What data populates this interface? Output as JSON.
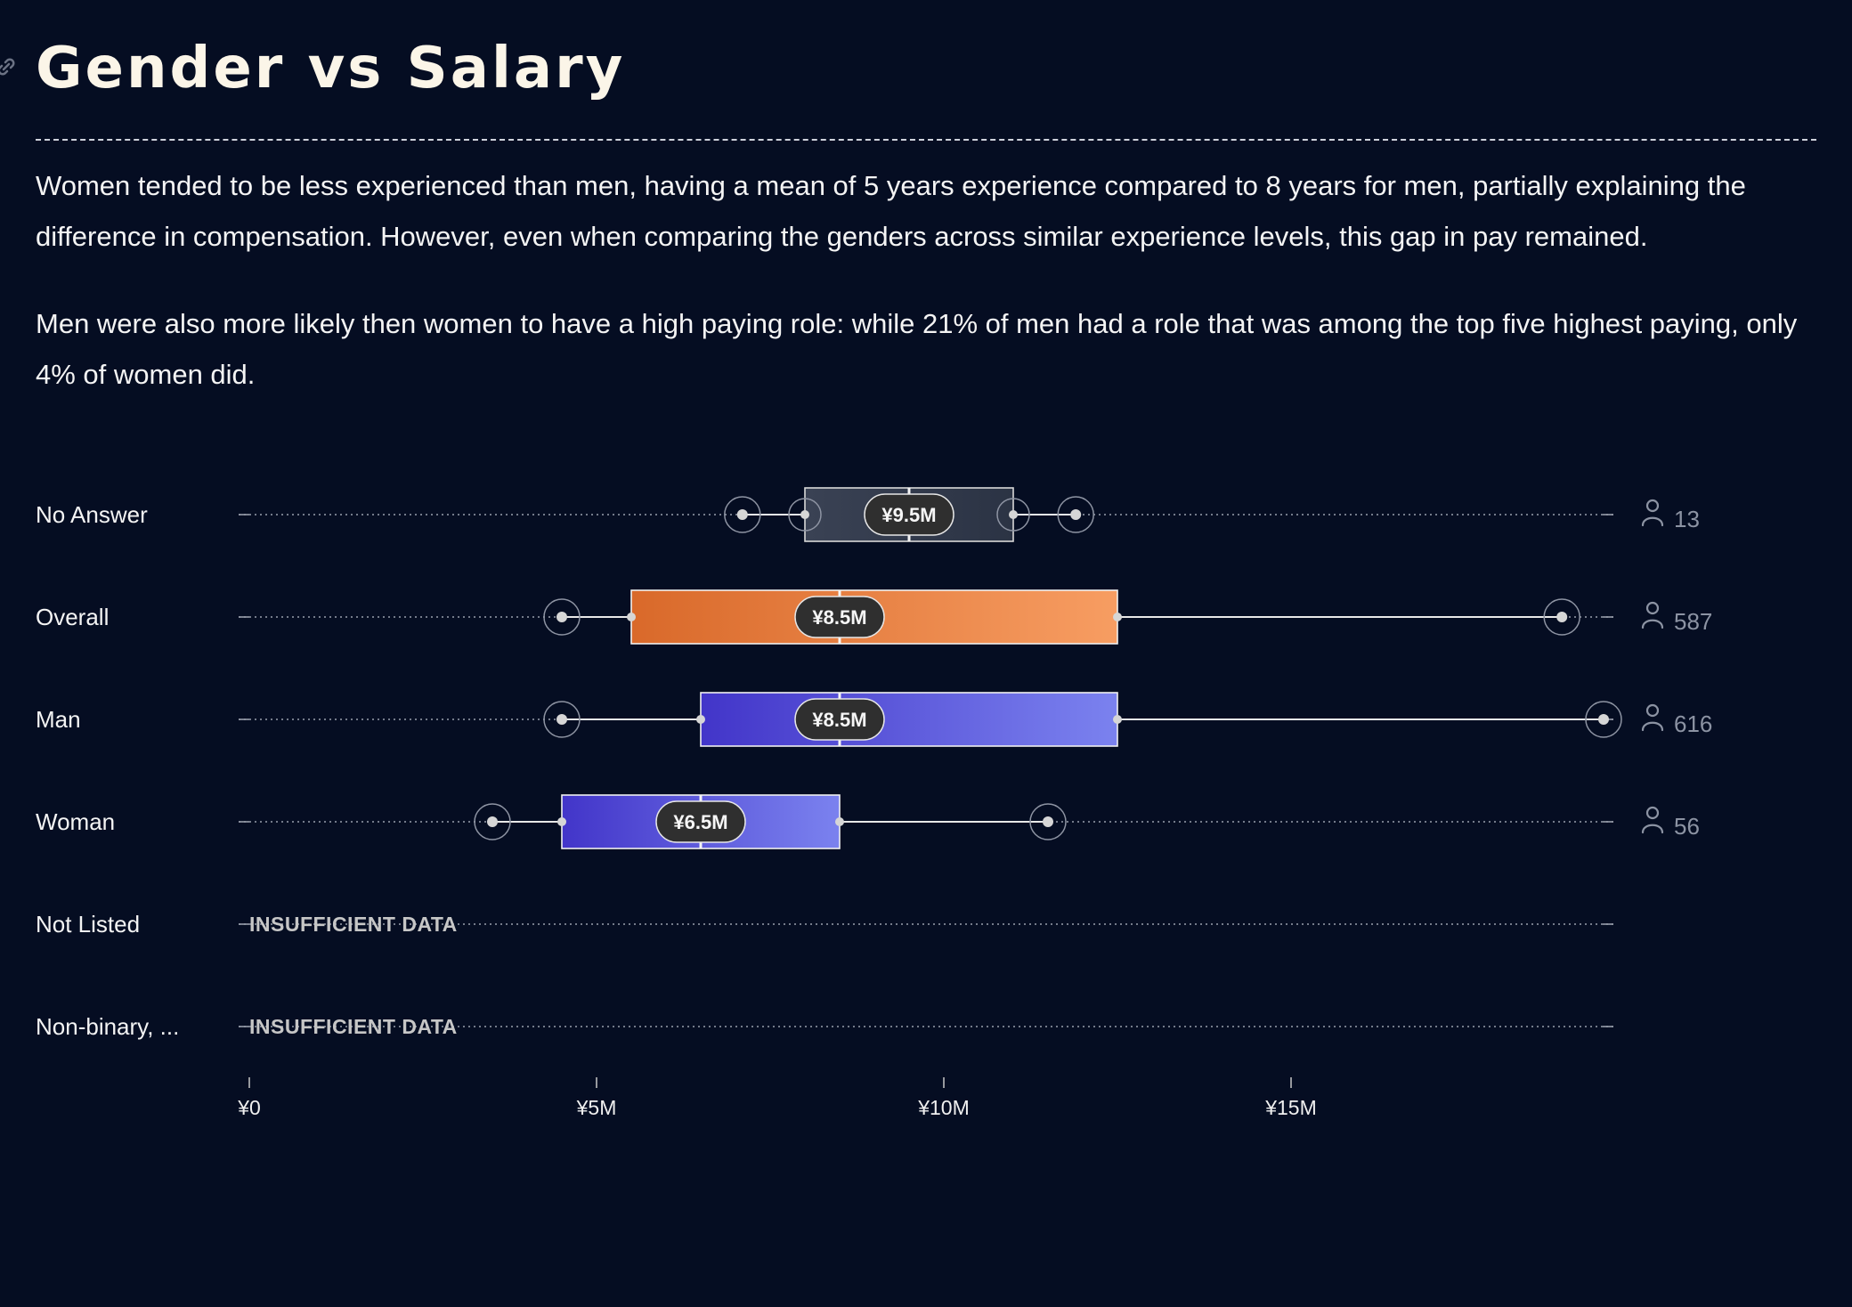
{
  "page": {
    "title": "Gender vs Salary",
    "link_icon": "link-icon",
    "paragraphs": [
      "Women tended to be less experienced than men, having a mean of 5 years experience compared to 8 years for men, partially explaining the difference in compensation. However, even when comparing the genders across similar experience levels, this gap in pay remained.",
      "Men were also more likely then women to have a high paying role: while 21% of men had a role that was among the top five highest paying, only 4% of women did."
    ],
    "count_icon": "person-icon",
    "colors": {
      "background": "#050d22",
      "title": "#fbf5e8",
      "no_answer_box": "#2b3344",
      "overall_box_start": "#d9692a",
      "overall_box_end": "#f79d62",
      "man_box_start": "#4235c9",
      "man_box_end": "#7b82ef",
      "woman_box_start": "#4235c9",
      "woman_box_end": "#7b82ef",
      "median_pill": "#2f2f2f"
    }
  },
  "chart_data": {
    "type": "boxplot",
    "title": "Gender vs Salary",
    "xlabel": "",
    "ylabel": "",
    "x_unit": "JPY",
    "x_ticks": [
      {
        "value": 0,
        "label": "¥0"
      },
      {
        "value": 5000000,
        "label": "¥5M"
      },
      {
        "value": 10000000,
        "label": "¥10M"
      },
      {
        "value": 15000000,
        "label": "¥15M"
      }
    ],
    "xlim": [
      0,
      19500000
    ],
    "grid": false,
    "series": [
      {
        "name": "No Answer",
        "whisker_low": 7100000,
        "q1": 8000000,
        "median": 9500000,
        "q3": 11000000,
        "whisker_high": 11900000,
        "median_label": "¥9.5M",
        "count": "13",
        "style": "gray"
      },
      {
        "name": "Overall",
        "whisker_low": 4500000,
        "q1": 5500000,
        "median": 8500000,
        "q3": 12500000,
        "whisker_high": 18900000,
        "median_label": "¥8.5M",
        "count": "587",
        "style": "orange"
      },
      {
        "name": "Man",
        "whisker_low": 4500000,
        "q1": 6500000,
        "median": 8500000,
        "q3": 12500000,
        "whisker_high": 19500000,
        "median_label": "¥8.5M",
        "count": "616",
        "style": "indigo"
      },
      {
        "name": "Woman",
        "whisker_low": 3500000,
        "q1": 4500000,
        "median": 6500000,
        "q3": 8500000,
        "whisker_high": 11500000,
        "median_label": "¥6.5M",
        "count": "56",
        "style": "indigo"
      },
      {
        "name": "Not Listed",
        "insufficient": true,
        "note": "INSUFFICIENT DATA"
      },
      {
        "name": "Non-binary, ...",
        "insufficient": true,
        "note": "INSUFFICIENT DATA"
      }
    ]
  }
}
